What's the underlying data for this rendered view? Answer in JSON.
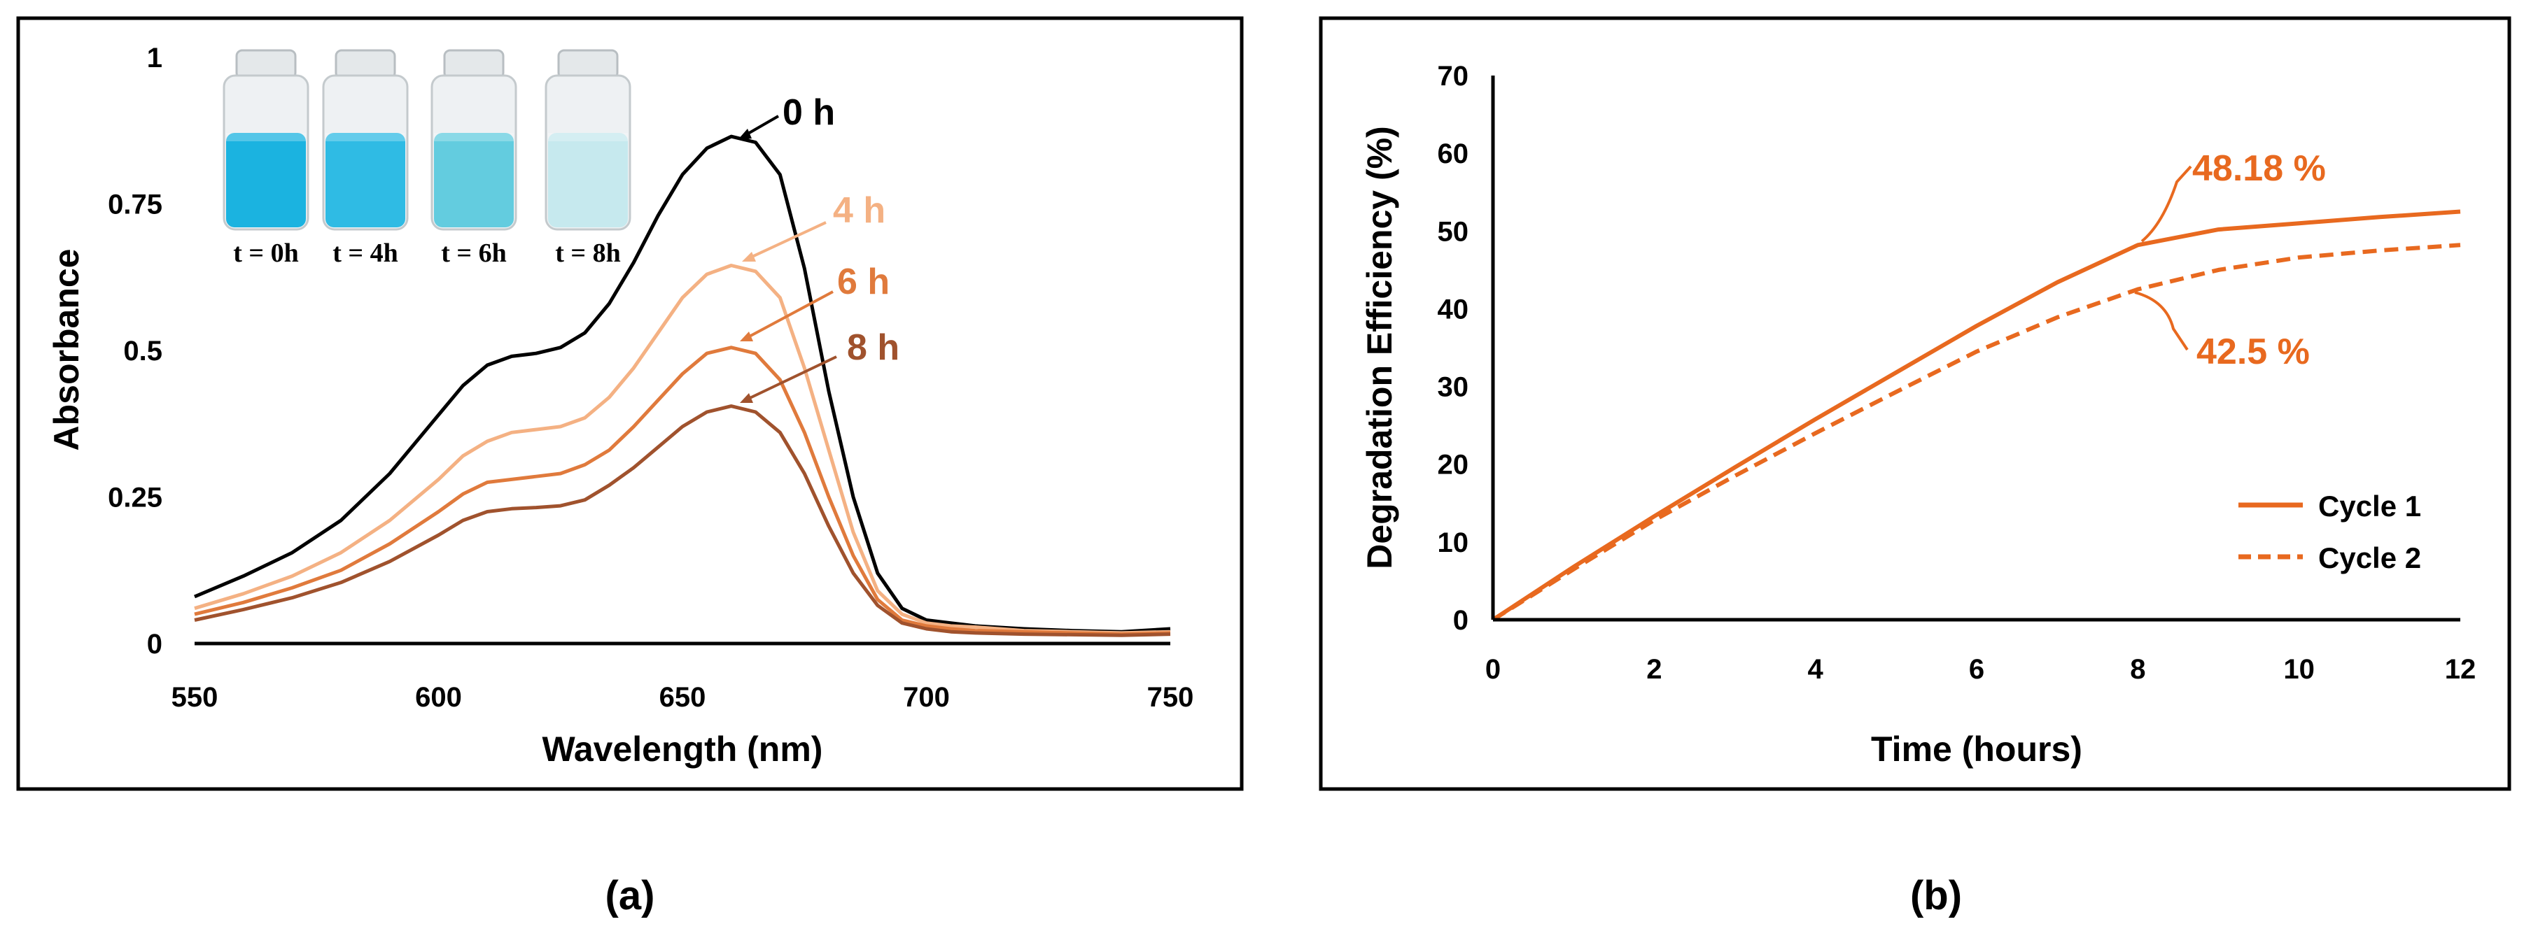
{
  "chart_data": [
    {
      "panel": "(a)",
      "type": "line",
      "xlabel": "Wavelength (nm)",
      "ylabel": "Absorbance",
      "xlim": [
        550,
        750
      ],
      "ylim": [
        0,
        1
      ],
      "xticks": [
        "550",
        "600",
        "650",
        "700",
        "750"
      ],
      "yticks": [
        "0",
        "0.25",
        "0.5",
        "0.75",
        "1"
      ],
      "x": [
        550,
        560,
        570,
        580,
        590,
        600,
        605,
        610,
        615,
        620,
        625,
        630,
        635,
        640,
        645,
        650,
        655,
        660,
        665,
        670,
        675,
        680,
        685,
        690,
        695,
        700,
        705,
        710,
        720,
        730,
        740,
        750
      ],
      "series": [
        {
          "name": "0 h",
          "label": "0 h",
          "color": "#000000",
          "values": [
            0.08,
            0.115,
            0.155,
            0.21,
            0.29,
            0.39,
            0.44,
            0.475,
            0.49,
            0.495,
            0.505,
            0.53,
            0.58,
            0.65,
            0.73,
            0.8,
            0.845,
            0.865,
            0.855,
            0.8,
            0.64,
            0.43,
            0.25,
            0.12,
            0.06,
            0.04,
            0.035,
            0.03,
            0.025,
            0.022,
            0.02,
            0.025
          ]
        },
        {
          "name": "4 h",
          "label": "4 h",
          "color": "#f4b183",
          "values": [
            0.06,
            0.085,
            0.115,
            0.155,
            0.21,
            0.28,
            0.32,
            0.345,
            0.36,
            0.365,
            0.37,
            0.385,
            0.42,
            0.47,
            0.53,
            0.59,
            0.63,
            0.645,
            0.635,
            0.59,
            0.47,
            0.33,
            0.19,
            0.09,
            0.05,
            0.035,
            0.03,
            0.028,
            0.022,
            0.02,
            0.018,
            0.02
          ]
        },
        {
          "name": "6 h",
          "label": "6 h",
          "color": "#e07a3c",
          "values": [
            0.05,
            0.07,
            0.095,
            0.125,
            0.17,
            0.225,
            0.255,
            0.275,
            0.28,
            0.285,
            0.29,
            0.305,
            0.33,
            0.37,
            0.415,
            0.46,
            0.495,
            0.505,
            0.495,
            0.45,
            0.36,
            0.25,
            0.15,
            0.075,
            0.04,
            0.03,
            0.025,
            0.022,
            0.02,
            0.018,
            0.016,
            0.018
          ]
        },
        {
          "name": "8 h",
          "label": "8 h",
          "color": "#a0522d",
          "values": [
            0.04,
            0.058,
            0.078,
            0.104,
            0.14,
            0.185,
            0.21,
            0.225,
            0.23,
            0.232,
            0.235,
            0.245,
            0.27,
            0.3,
            0.335,
            0.37,
            0.395,
            0.405,
            0.395,
            0.36,
            0.29,
            0.2,
            0.12,
            0.065,
            0.035,
            0.025,
            0.02,
            0.018,
            0.016,
            0.015,
            0.014,
            0.016
          ]
        }
      ],
      "inset": {
        "vial_labels": [
          "t = 0h",
          "t = 4h",
          "t = 6h",
          "t = 8h"
        ],
        "vial_colors": [
          "#1bb3e0",
          "#2fbbe4",
          "#63ccdf",
          "#c6e9ee"
        ]
      }
    },
    {
      "panel": "(b)",
      "type": "line",
      "xlabel": "Time (hours)",
      "ylabel": "Degradation Efficiency (%)",
      "xlim": [
        0,
        12
      ],
      "ylim": [
        0,
        70
      ],
      "xticks": [
        "0",
        "2",
        "4",
        "6",
        "8",
        "10",
        "12"
      ],
      "yticks": [
        "0",
        "10",
        "20",
        "30",
        "40",
        "50",
        "60",
        "70"
      ],
      "x": [
        0,
        1,
        2,
        3,
        4,
        5,
        6,
        7,
        8,
        9,
        10,
        11,
        12
      ],
      "series": [
        {
          "name": "Cycle 1",
          "style": "solid",
          "color": "#e8691f",
          "values": [
            0,
            6.8,
            13.3,
            19.6,
            25.8,
            31.8,
            37.8,
            43.4,
            48.2,
            50.2,
            51,
            51.8,
            52.5
          ]
        },
        {
          "name": "Cycle 2",
          "style": "dashed",
          "color": "#e8691f",
          "values": [
            0,
            6.5,
            12.8,
            18.5,
            24,
            29.3,
            34.5,
            38.9,
            42.5,
            45,
            46.6,
            47.5,
            48.2
          ]
        }
      ],
      "annotations": [
        {
          "text": "48.18 %",
          "color": "#e8691f"
        },
        {
          "text": "42.5 %",
          "color": "#e8691f"
        }
      ]
    }
  ]
}
